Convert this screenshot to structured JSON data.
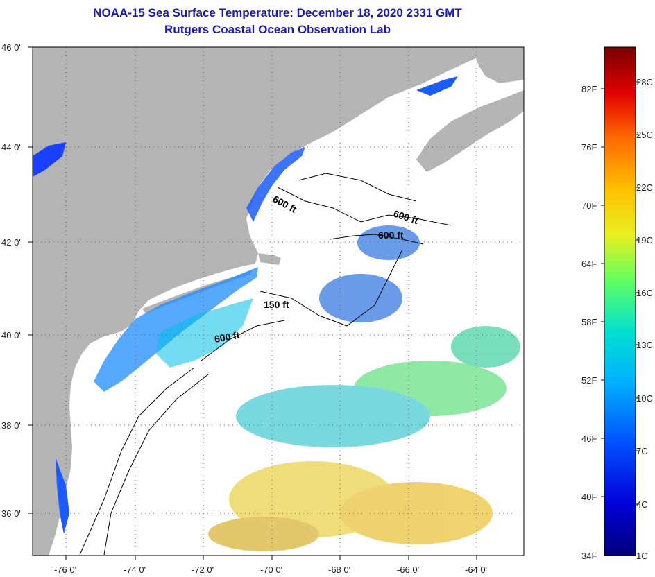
{
  "header": {
    "title": "NOAA-15 Sea Surface Temperature:  December 18, 2020 2331 GMT",
    "subtitle": "Rutgers Coastal Ocean Observation Lab"
  },
  "axes": {
    "lon_labels": [
      "-76 0'",
      "-74 0'",
      "-72 0'",
      "-70 0'",
      "-68 0'",
      "-66 0'",
      "-64 0'"
    ],
    "lat_labels": [
      "46 0'",
      "44 0'",
      "42 0'",
      "40 0'",
      "38 0'",
      "36 0'"
    ]
  },
  "contours": [
    {
      "label": "600 ft"
    },
    {
      "label": "600 ft"
    },
    {
      "label": "600 ft"
    },
    {
      "label": "150 ft"
    },
    {
      "label": "600 ft"
    }
  ],
  "colorbar": {
    "fahrenheit": [
      "82F",
      "76F",
      "70F",
      "64F",
      "58F",
      "52F",
      "46F",
      "40F",
      "34F"
    ],
    "celsius": [
      "28C",
      "25C",
      "22C",
      "19C",
      "16C",
      "13C",
      "10C",
      "7C",
      "4C",
      "1C"
    ]
  },
  "colors": {
    "land": "#b4b4b4",
    "ocean": "#ffffff",
    "title": "#1a1ab0"
  }
}
